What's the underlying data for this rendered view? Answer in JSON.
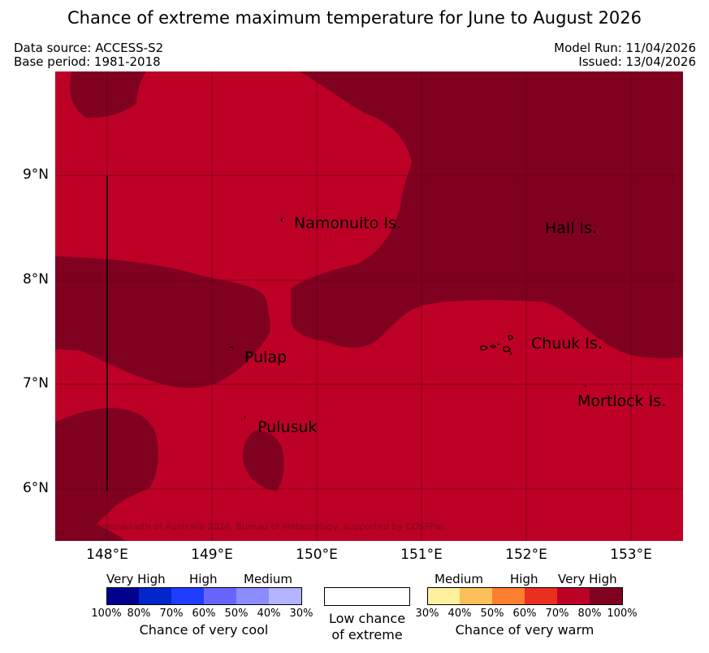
{
  "title": "Chance of extreme maximum temperature for June to August 2026",
  "meta": {
    "data_source": "Data source: ACCESS-S2",
    "base_period": "Base period: 1981-2018",
    "model_run": "Model Run: 11/04/2026",
    "issued": "Issued: 13/04/2026"
  },
  "map": {
    "x_ticks": [
      "148°E",
      "149°E",
      "150°E",
      "151°E",
      "152°E",
      "153°E"
    ],
    "y_ticks": [
      "9°N",
      "8°N",
      "7°N",
      "6°N"
    ],
    "places": {
      "namonuito": "Namonuito Is.",
      "hall": "Hall Is.",
      "pulap": "Pulap",
      "chuuk": "Chuuk Is.",
      "mortlock": "Mortlock Is.",
      "pulusuk": "Pulusuk"
    },
    "copyright": "© Commonwealth of Australia 2026, Bureau of Meteorology, supported by COSPPac"
  },
  "legend": {
    "cool": {
      "headings": [
        "Very High",
        "High",
        "Medium"
      ],
      "percentages": [
        "100%",
        "80%",
        "70%",
        "60%",
        "50%",
        "40%",
        "30%"
      ],
      "colors": [
        "#00008f",
        "#0026cc",
        "#1f3dff",
        "#6666ff",
        "#8c8cff",
        "#b3b3ff"
      ],
      "caption": "Chance of very cool"
    },
    "neutral": {
      "caption_line1": "Low chance",
      "caption_line2": "of extreme",
      "color": "#ffffff"
    },
    "warm": {
      "headings": [
        "Medium",
        "High",
        "Very High"
      ],
      "percentages": [
        "30%",
        "40%",
        "50%",
        "60%",
        "70%",
        "80%",
        "100%"
      ],
      "colors": [
        "#fff09e",
        "#fdbf5a",
        "#fd7f30",
        "#e92f20",
        "#bd0026",
        "#800020"
      ],
      "caption": "Chance of very warm"
    }
  },
  "colors": {
    "high": "#bd0026",
    "very_high": "#800020",
    "grid": "#5a0010"
  }
}
